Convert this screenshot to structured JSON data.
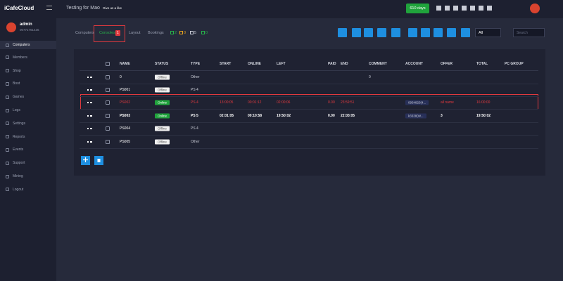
{
  "sidebar": {
    "logo": "iCafeCloud",
    "user": "admin",
    "user_id": "00771761436",
    "menu": [
      "Computers",
      "Members",
      "Shop",
      "Boot",
      "Games",
      "Logs",
      "Settings",
      "Reports",
      "Events",
      "Support",
      "Mining",
      "Logout"
    ]
  },
  "topbar": {
    "title": "Testing for Mao",
    "like": "Give us a like",
    "days": "610 days"
  },
  "tabs": {
    "items": [
      "Computers",
      "Consoles",
      "Layout",
      "Bookings"
    ],
    "badge": "1",
    "counts": [
      "2",
      "0",
      "5",
      "0"
    ]
  },
  "filter": {
    "select": "All",
    "search": "Search"
  },
  "table": {
    "headers": [
      "NAME",
      "STATUS",
      "TYPE",
      "START",
      "ONLINE",
      "LEFT",
      "PAID",
      "END",
      "COMMENT",
      "ACCOUNT",
      "OFFER",
      "TOTAL",
      "PC GROUP"
    ],
    "rows": [
      {
        "name": "0",
        "status": "Offline",
        "type": "Other",
        "comment": "0"
      },
      {
        "name": "PS001",
        "status": "Offline",
        "type": "PS 4"
      },
      {
        "name": "PS002",
        "status": "Online",
        "type": "PS 4",
        "start": "13:00:05",
        "online": "00:01:12",
        "left": "02:00:06",
        "paid": "0.00",
        "end": "23:59:51",
        "account": "0934823(4...",
        "offer": "all name",
        "total": "16:00:00"
      },
      {
        "name": "PS003",
        "status": "Online",
        "type": "PS 5",
        "start": "02:01:05",
        "online": "00:10:58",
        "left": "19:50:02",
        "paid": "0.00",
        "end": "22:03:05",
        "account": "k3338(W...",
        "offer": "3",
        "total": "19:50:02"
      },
      {
        "name": "PS004",
        "status": "Offline",
        "type": "PS 4"
      },
      {
        "name": "PS005",
        "status": "Offline",
        "type": "Other"
      }
    ]
  }
}
